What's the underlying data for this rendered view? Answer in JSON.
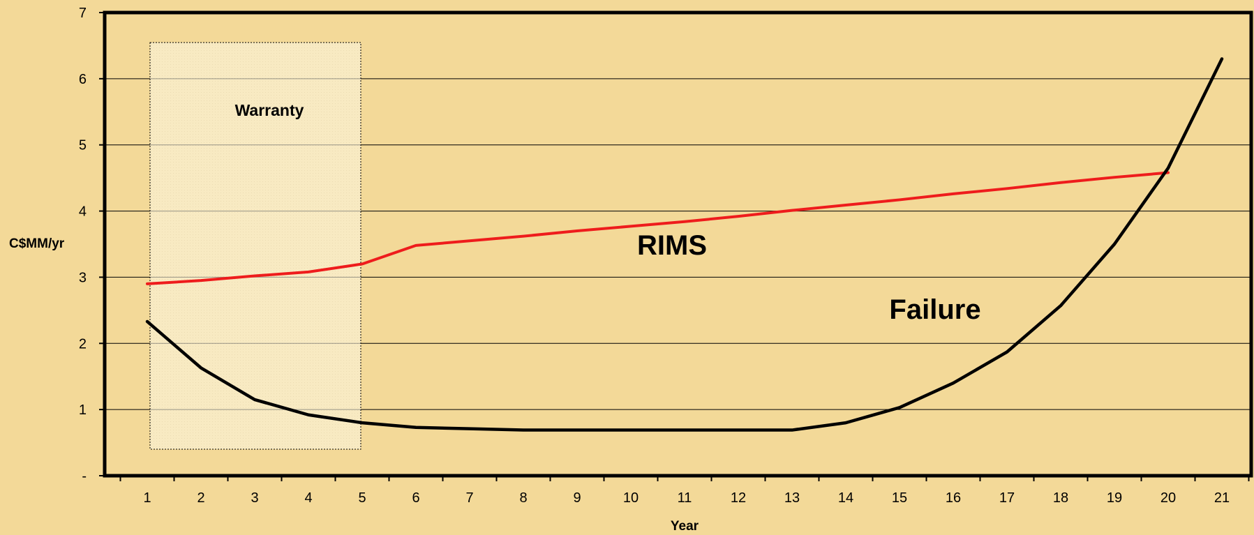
{
  "chart_data": {
    "type": "line",
    "title": "",
    "xlabel": "Year",
    "ylabel": "C$MM/yr",
    "categories": [
      1,
      2,
      3,
      4,
      5,
      6,
      7,
      8,
      9,
      10,
      11,
      12,
      13,
      14,
      15,
      16,
      17,
      18,
      19,
      20,
      21
    ],
    "y_tick_labels": [
      "-",
      "1",
      "2",
      "3",
      "4",
      "5",
      "6",
      "7"
    ],
    "ylim": [
      0,
      7
    ],
    "grid": "horizontal",
    "series": [
      {
        "name": "RIMS",
        "color": "#EE1C1C",
        "x": [
          1,
          2,
          3,
          4,
          5,
          6,
          7,
          8,
          9,
          10,
          11,
          12,
          13,
          14,
          15,
          16,
          17,
          18,
          19,
          20
        ],
        "values": [
          2.9,
          2.95,
          3.02,
          3.08,
          3.2,
          3.48,
          3.55,
          3.62,
          3.7,
          3.77,
          3.84,
          3.92,
          4.01,
          4.09,
          4.17,
          4.26,
          4.34,
          4.43,
          4.51,
          4.58
        ]
      },
      {
        "name": "Failure",
        "color": "#000000",
        "x": [
          1,
          2,
          3,
          4,
          5,
          6,
          7,
          8,
          9,
          10,
          11,
          12,
          13,
          14,
          15,
          16,
          17,
          18,
          19,
          20,
          21
        ],
        "values": [
          2.33,
          1.63,
          1.15,
          0.92,
          0.8,
          0.73,
          0.71,
          0.69,
          0.69,
          0.69,
          0.69,
          0.69,
          0.69,
          0.8,
          1.03,
          1.4,
          1.87,
          2.57,
          3.5,
          4.65,
          6.3
        ]
      }
    ],
    "annotations": [
      {
        "id": "warranty",
        "text": "Warranty",
        "kind": "shaded-region",
        "x_range": [
          1,
          5
        ]
      }
    ]
  }
}
